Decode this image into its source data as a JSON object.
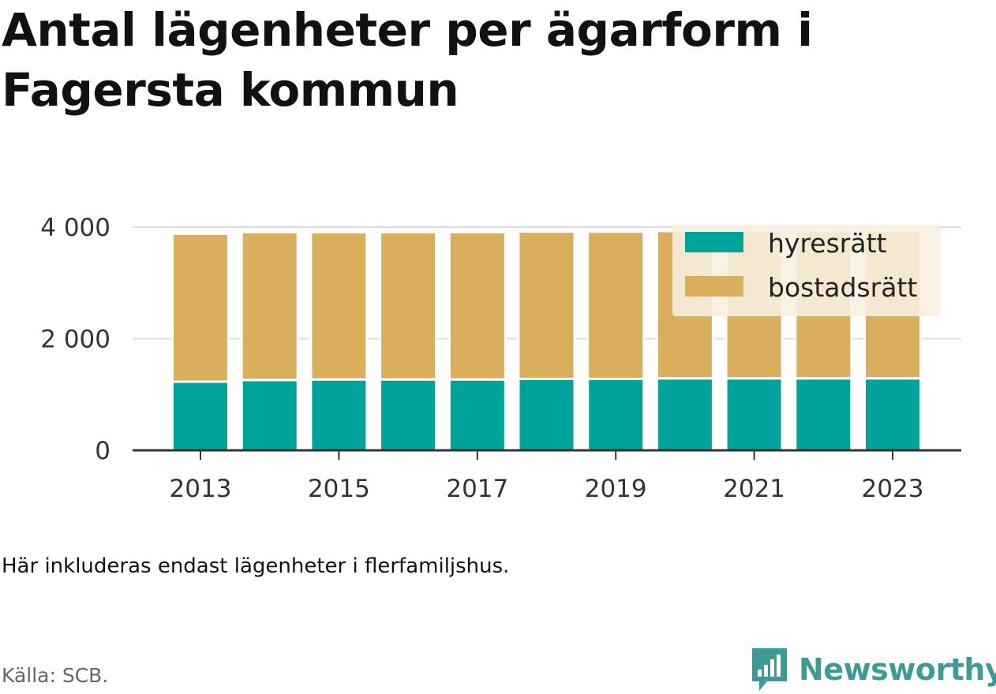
{
  "title": "Antal lägenheter per ägarform i Fagersta kommun",
  "note": "Här inkluderas endast lägenheter i flerfamiljshus.",
  "source": "Källa: SCB.",
  "brand": "Newsworthy",
  "colors": {
    "hyresratt": "#00a39a",
    "bostadsratt": "#d9ae5c",
    "legend_bg": "#f8f0e0",
    "axis": "#333333",
    "grid": "#dddddd",
    "brand": "#3e9a95"
  },
  "chart_data": {
    "type": "bar",
    "stacked": true,
    "categories": [
      "2013",
      "2014",
      "2015",
      "2016",
      "2017",
      "2018",
      "2019",
      "2020",
      "2021",
      "2022",
      "2023"
    ],
    "x_tick_labels": [
      "2013",
      "2015",
      "2017",
      "2019",
      "2021",
      "2023"
    ],
    "series": [
      {
        "name": "hyresrätt",
        "values": [
          1230,
          1260,
          1270,
          1270,
          1270,
          1280,
          1280,
          1290,
          1290,
          1290,
          1290
        ]
      },
      {
        "name": "bostadsrätt",
        "values": [
          2650,
          2650,
          2640,
          2640,
          2640,
          2640,
          2640,
          2640,
          2640,
          2640,
          2640
        ]
      }
    ],
    "y_ticks": [
      0,
      2000,
      4000
    ],
    "y_tick_labels": [
      "0",
      "2 000",
      "4 000"
    ],
    "ylim": [
      0,
      4000
    ],
    "xlabel": "",
    "ylabel": "",
    "grid": true,
    "legend_position": "top-right"
  }
}
